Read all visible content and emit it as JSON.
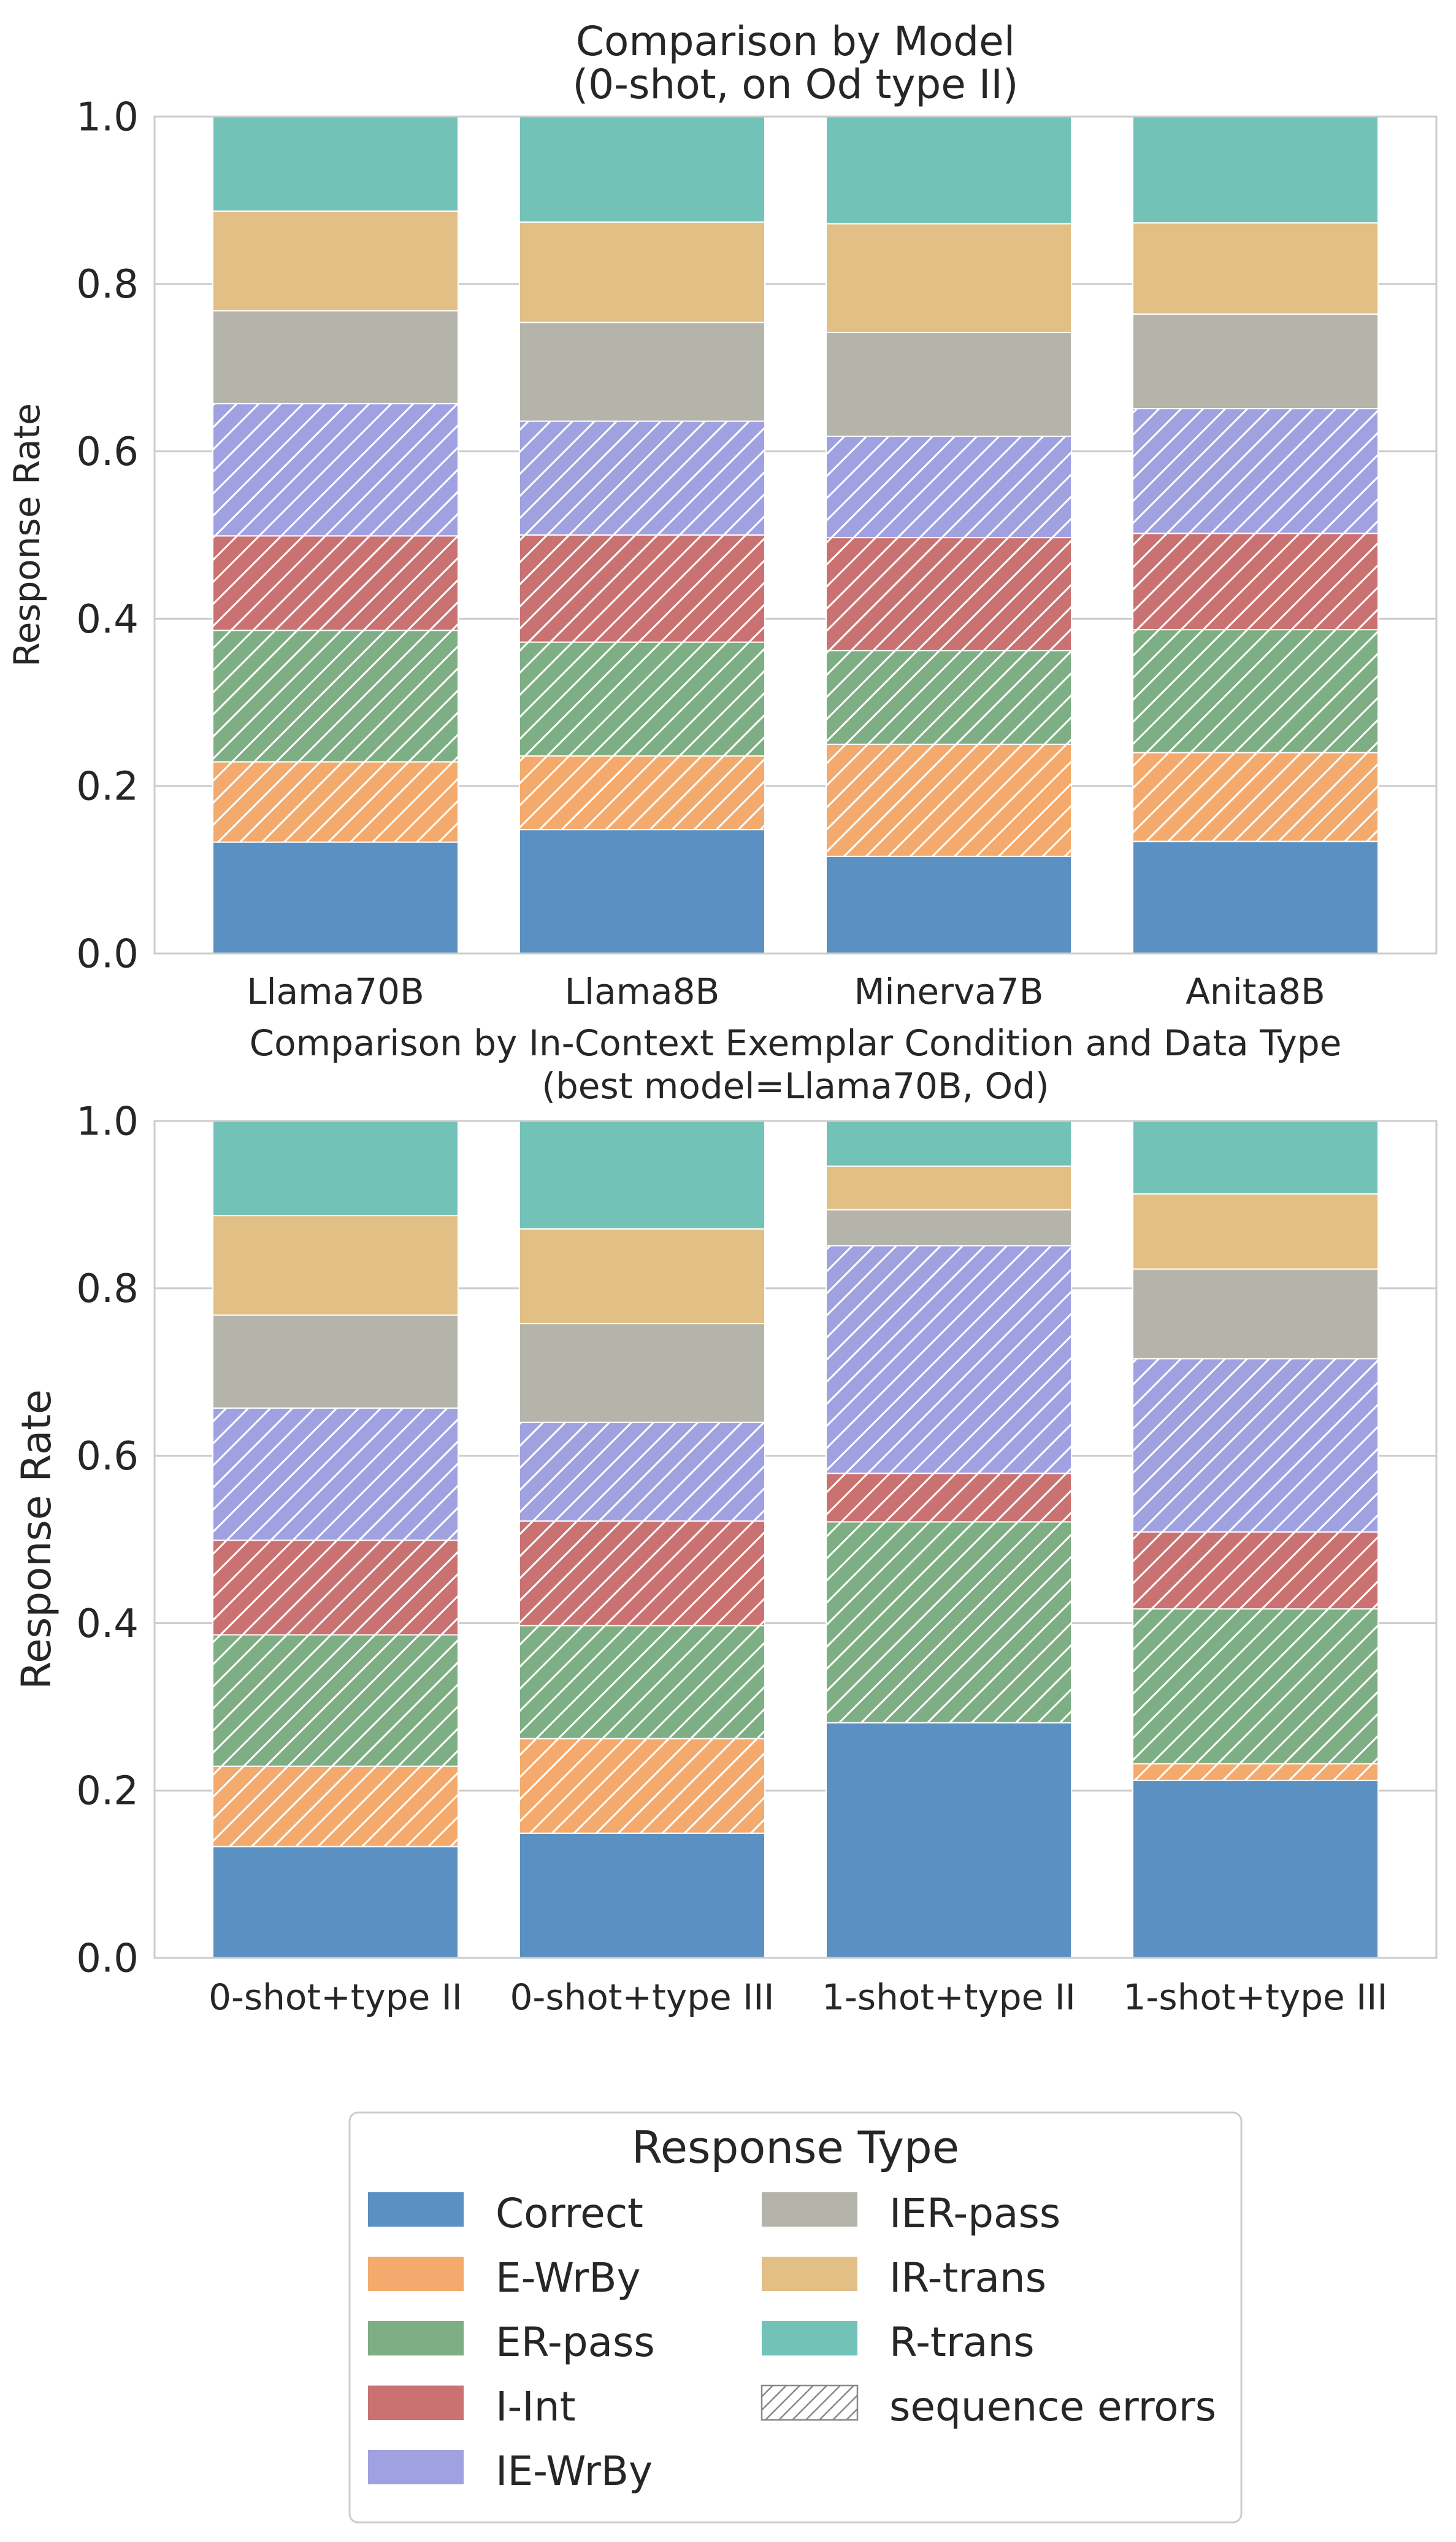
{
  "colors": {
    "Correct": "#5a90c2",
    "E-WrBy": "#f4aa6c",
    "ER-pass": "#7eae84",
    "I-Int": "#c97271",
    "IE-WrBy": "#a0a1e1",
    "IER-pass": "#b4b4aa",
    "IR-trans": "#e2bf85",
    "R-trans": "#72c2b8"
  },
  "chart_data": [
    {
      "type": "bar",
      "stacked": true,
      "title": "Comparison by Model\n(0-shot, on Od type II)",
      "xlabel": "",
      "ylabel": "Response Rate",
      "ylim": [
        0,
        1
      ],
      "yticks": [
        "0.0",
        "0.2",
        "0.4",
        "0.6",
        "0.8",
        "1.0"
      ],
      "grid": true,
      "categories": [
        "Llama70B",
        "Llama8B",
        "Minerva7B",
        "Anita8B"
      ],
      "series": [
        {
          "name": "Correct",
          "hatched": false,
          "values": [
            0.133,
            0.148,
            0.116,
            0.134
          ]
        },
        {
          "name": "E-WrBy",
          "hatched": true,
          "values": [
            0.096,
            0.088,
            0.134,
            0.106
          ]
        },
        {
          "name": "ER-pass",
          "hatched": true,
          "values": [
            0.157,
            0.136,
            0.112,
            0.147
          ]
        },
        {
          "name": "I-Int",
          "hatched": true,
          "values": [
            0.113,
            0.128,
            0.135,
            0.115
          ]
        },
        {
          "name": "IE-WrBy",
          "hatched": true,
          "values": [
            0.158,
            0.136,
            0.121,
            0.149
          ]
        },
        {
          "name": "IER-pass",
          "hatched": false,
          "values": [
            0.111,
            0.118,
            0.124,
            0.113
          ]
        },
        {
          "name": "IR-trans",
          "hatched": false,
          "values": [
            0.119,
            0.12,
            0.13,
            0.109
          ]
        },
        {
          "name": "R-trans",
          "hatched": false,
          "values": [
            0.113,
            0.126,
            0.128,
            0.127
          ]
        }
      ]
    },
    {
      "type": "bar",
      "stacked": true,
      "title": "Comparison by In-Context Exemplar Condition and Data Type\n(best model=Llama70B, Od)",
      "xlabel": "",
      "ylabel": "Response Rate",
      "ylim": [
        0,
        1
      ],
      "yticks": [
        "0.0",
        "0.2",
        "0.4",
        "0.6",
        "0.8",
        "1.0"
      ],
      "grid": true,
      "categories": [
        "0-shot+type II",
        "0-shot+type III",
        "1-shot+type II",
        "1-shot+type III"
      ],
      "series": [
        {
          "name": "Correct",
          "hatched": false,
          "values": [
            0.133,
            0.149,
            0.281,
            0.212
          ]
        },
        {
          "name": "E-WrBy",
          "hatched": true,
          "values": [
            0.096,
            0.113,
            0.0,
            0.02
          ]
        },
        {
          "name": "ER-pass",
          "hatched": true,
          "values": [
            0.157,
            0.135,
            0.24,
            0.185
          ]
        },
        {
          "name": "I-Int",
          "hatched": true,
          "values": [
            0.113,
            0.125,
            0.058,
            0.092
          ]
        },
        {
          "name": "IE-WrBy",
          "hatched": true,
          "values": [
            0.158,
            0.118,
            0.272,
            0.207
          ]
        },
        {
          "name": "IER-pass",
          "hatched": false,
          "values": [
            0.111,
            0.118,
            0.043,
            0.107
          ]
        },
        {
          "name": "IR-trans",
          "hatched": false,
          "values": [
            0.119,
            0.113,
            0.052,
            0.09
          ]
        },
        {
          "name": "R-trans",
          "hatched": false,
          "values": [
            0.113,
            0.129,
            0.054,
            0.087
          ]
        }
      ]
    }
  ],
  "legend": {
    "title": "Response Type",
    "placement": "bottom-center",
    "items": [
      "Correct",
      "E-WrBy",
      "ER-pass",
      "I-Int",
      "IE-WrBy",
      "IER-pass",
      "IR-trans",
      "R-trans",
      "sequence errors"
    ]
  }
}
